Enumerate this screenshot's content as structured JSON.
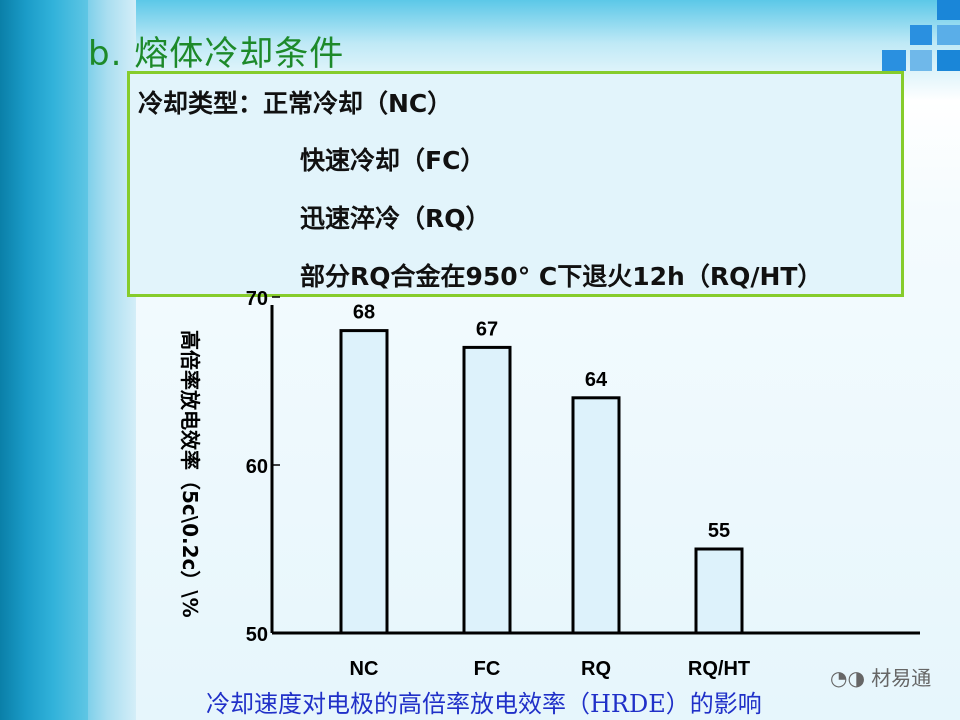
{
  "slide": {
    "title": "b. 熔体冷却条件",
    "box_lines": [
      "冷却类型：正常冷却（NC）",
      "快速冷却（FC）",
      "迅速淬冷（RQ）",
      "部分RQ合金在950° C下退火12h（RQ/HT）"
    ],
    "caption": "冷却速度对电极的高倍率放电效率（HRDE）的影响",
    "watermark": "材易通",
    "colors": {
      "title": "#1d8a2a",
      "box_border": "#86cc2c",
      "caption": "#2030c8",
      "bar_fill": "#ddf2fb"
    }
  },
  "chart_data": {
    "type": "bar",
    "categories": [
      "NC",
      "FC",
      "RQ",
      "RQ/HT"
    ],
    "values": [
      68,
      67,
      64,
      55
    ],
    "ylabel": "高倍率放电效率（5c\\0.2c）\\%",
    "ylim": [
      50,
      70
    ],
    "yticks": [
      50,
      60,
      70
    ],
    "grid": false
  }
}
